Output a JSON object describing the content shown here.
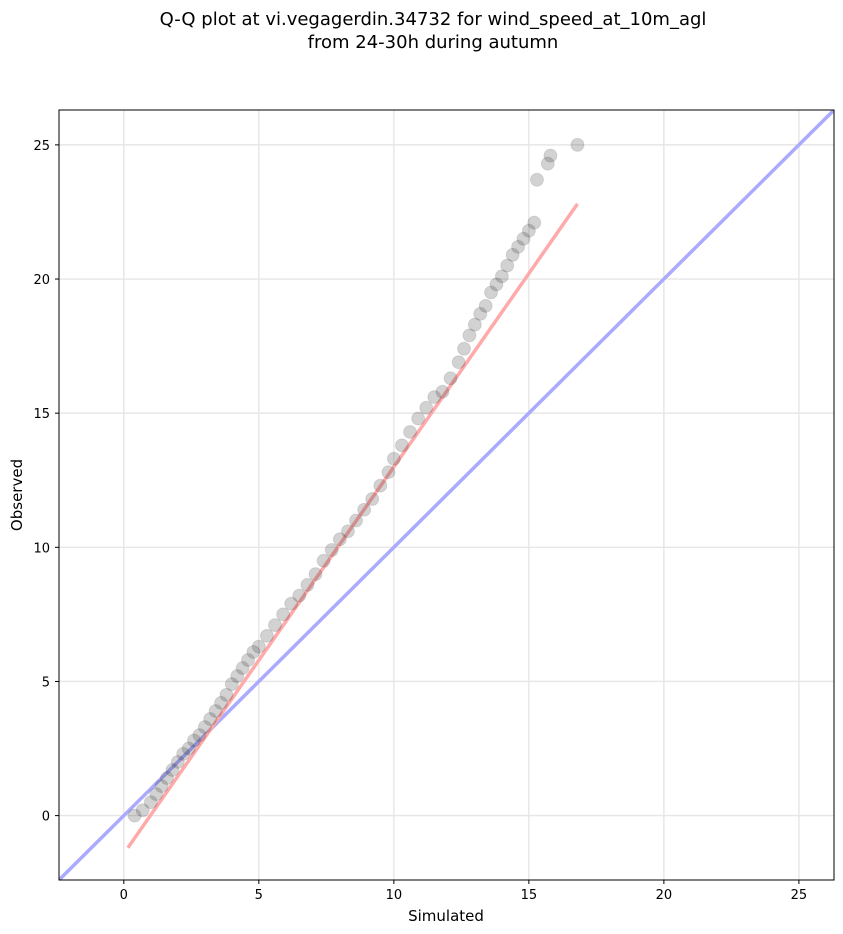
{
  "chart_data": {
    "type": "scatter",
    "title": [
      "Q-Q plot at vi.vegagerdin.34732 for wind_speed_at_10m_agl",
      "from 24-30h during autumn"
    ],
    "xlabel": "Simulated",
    "ylabel": "Observed",
    "xlim": [
      -2.4,
      26.3
    ],
    "ylim": [
      -2.4,
      26.3
    ],
    "xticks": [
      0,
      5,
      10,
      15,
      20,
      25
    ],
    "yticks": [
      0,
      5,
      10,
      15,
      20,
      25
    ],
    "grid": true,
    "legend": "none",
    "colors": {
      "points": "#333333",
      "identity_line": "#aaaaff",
      "fit_line": "#ffaaaa"
    },
    "identity_line": {
      "x": [
        -2.4,
        26.3
      ],
      "y": [
        -2.4,
        26.3
      ]
    },
    "fit_line": {
      "x": [
        0.15,
        16.8
      ],
      "y": [
        -1.2,
        22.8
      ]
    },
    "series": [
      {
        "x": [
          0.4,
          0.7,
          1.0,
          1.2,
          1.4,
          1.6,
          1.8,
          2.0,
          2.2,
          2.4,
          2.6,
          2.8,
          3.0,
          3.2,
          3.4,
          3.6,
          3.8,
          4.0,
          4.2,
          4.4,
          4.6,
          4.8,
          5.0,
          5.3,
          5.6,
          5.9,
          6.2,
          6.5,
          6.8,
          7.1,
          7.4,
          7.7,
          8.0,
          8.3,
          8.6,
          8.9,
          9.2,
          9.5,
          9.8,
          10.0,
          10.3,
          10.6,
          10.9,
          11.2,
          11.5,
          11.8,
          12.1,
          12.4,
          12.6,
          12.8,
          13.0,
          13.2,
          13.4,
          13.6,
          13.8,
          14.0,
          14.2,
          14.4,
          14.6,
          14.8,
          15.0,
          15.2,
          15.3,
          15.7,
          15.8,
          16.8
        ],
        "y": [
          0.0,
          0.2,
          0.5,
          0.8,
          1.1,
          1.4,
          1.7,
          2.0,
          2.3,
          2.5,
          2.8,
          3.0,
          3.3,
          3.6,
          3.9,
          4.2,
          4.5,
          4.9,
          5.2,
          5.5,
          5.8,
          6.1,
          6.3,
          6.7,
          7.1,
          7.5,
          7.9,
          8.2,
          8.6,
          9.0,
          9.5,
          9.9,
          10.3,
          10.6,
          11.0,
          11.4,
          11.8,
          12.3,
          12.8,
          13.3,
          13.8,
          14.3,
          14.8,
          15.2,
          15.6,
          15.8,
          16.3,
          16.9,
          17.4,
          17.9,
          18.3,
          18.7,
          19.0,
          19.5,
          19.8,
          20.1,
          20.5,
          20.9,
          21.2,
          21.5,
          21.8,
          22.1,
          23.7,
          24.3,
          24.6,
          25.0
        ]
      }
    ]
  }
}
